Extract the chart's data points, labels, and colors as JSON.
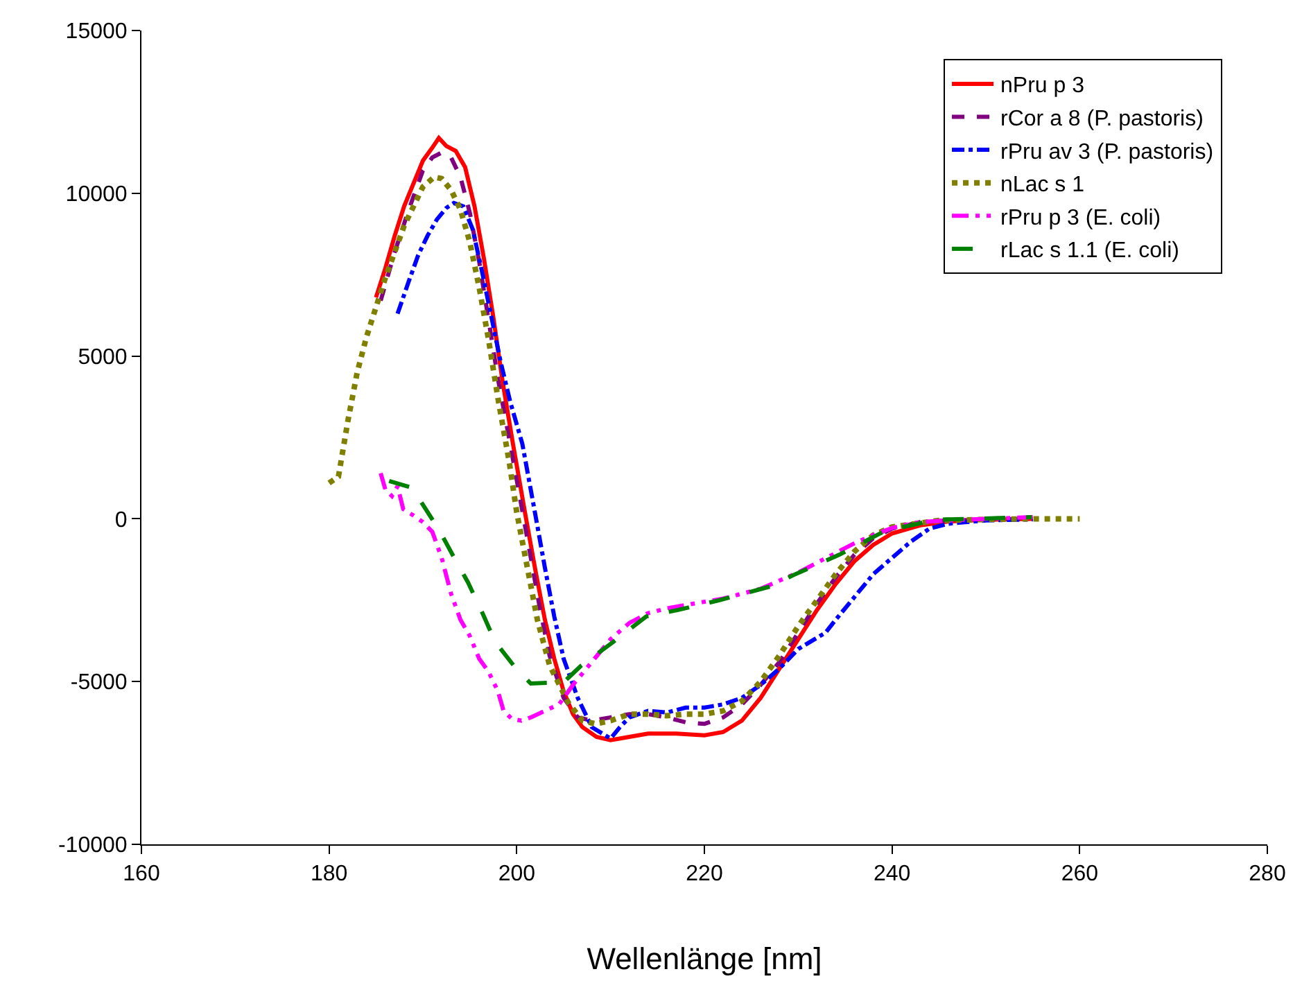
{
  "chart_data": {
    "type": "line",
    "xlabel": "Wellenlänge [nm]",
    "xlim": [
      160,
      280
    ],
    "xticks": [
      160,
      180,
      200,
      220,
      240,
      260,
      280
    ],
    "ylim": [
      -10000,
      15000
    ],
    "yticks": [
      -10000,
      -5000,
      0,
      5000,
      10000,
      15000
    ],
    "legend": "top right",
    "marker": "none",
    "series": [
      {
        "name": "nPru p 3",
        "color": "#ff0000",
        "line_style": "solid",
        "x": [
          185,
          186,
          187,
          188,
          189,
          190,
          191,
          191.7,
          192.5,
          193.5,
          194.5,
          195.5,
          196.5,
          197.5,
          198.5,
          199.6,
          201,
          202,
          203,
          204,
          205,
          206,
          207,
          208.5,
          210,
          212,
          214,
          217,
          220,
          222,
          224,
          226,
          228,
          230,
          232,
          234,
          236,
          238,
          240,
          243,
          246,
          250,
          255
        ],
        "values": [
          6800,
          7700,
          8700,
          9600,
          10300,
          11000,
          11400,
          11700,
          11450,
          11300,
          10800,
          9600,
          8000,
          6200,
          4200,
          2300,
          0,
          -1600,
          -3100,
          -4300,
          -5300,
          -6000,
          -6400,
          -6700,
          -6800,
          -6700,
          -6600,
          -6600,
          -6650,
          -6550,
          -6200,
          -5500,
          -4600,
          -3700,
          -2800,
          -2000,
          -1300,
          -800,
          -450,
          -200,
          -80,
          -30,
          0
        ]
      },
      {
        "name": "rCor a 8 (P. pastoris)",
        "color": "#800080",
        "line_style": "dashed",
        "x": [
          185.5,
          187,
          188.5,
          190,
          191,
          192,
          193,
          194,
          195,
          196,
          197,
          198,
          199.3,
          200.5,
          201.5,
          202.5,
          203.5,
          205,
          206.5,
          208,
          210,
          212,
          214,
          216,
          218,
          220,
          222,
          224,
          226,
          228,
          230,
          232,
          234,
          236,
          238,
          240,
          243,
          246,
          250,
          255
        ],
        "values": [
          6700,
          8200,
          9500,
          10700,
          11100,
          11250,
          11100,
          10500,
          9400,
          7900,
          6100,
          4300,
          2300,
          400,
          -1200,
          -2800,
          -4200,
          -5500,
          -6100,
          -6200,
          -6100,
          -6000,
          -6000,
          -6100,
          -6250,
          -6300,
          -6100,
          -5700,
          -5100,
          -4400,
          -3500,
          -2600,
          -1800,
          -1100,
          -600,
          -300,
          -100,
          -50,
          -30,
          0
        ]
      },
      {
        "name": "rPru av 3 (P. pastoris)",
        "color": "#0000ff",
        "line_style": "dashdot",
        "x": [
          187.3,
          188.5,
          189.5,
          190.5,
          191.5,
          192.5,
          193.3,
          194.3,
          195.3,
          196.3,
          197.3,
          198.3,
          199.3,
          200.6,
          202,
          203,
          204,
          205,
          206.5,
          208,
          210,
          211,
          212,
          214,
          216,
          218,
          220,
          222,
          224,
          226,
          228,
          230,
          232.9,
          234,
          236,
          238,
          239.2,
          240,
          242,
          244,
          246,
          250,
          255
        ],
        "values": [
          6300,
          7300,
          8100,
          8700,
          9200,
          9550,
          9700,
          9600,
          8900,
          7600,
          6200,
          4800,
          3600,
          2300,
          100,
          -1500,
          -3000,
          -4300,
          -5500,
          -6400,
          -6750,
          -6400,
          -6100,
          -5900,
          -5950,
          -5800,
          -5800,
          -5700,
          -5500,
          -5100,
          -4600,
          -4000,
          -3500,
          -3100,
          -2400,
          -1700,
          -1400,
          -1200,
          -700,
          -300,
          -150,
          -50,
          -20
        ]
      },
      {
        "name": "nLac s 1",
        "color": "#808000",
        "line_style": "dotted",
        "x": [
          180,
          181,
          182,
          183,
          184,
          185,
          186,
          187,
          188,
          189,
          190,
          191.2,
          192,
          193,
          194,
          195,
          196,
          197,
          198,
          199.2,
          200,
          201,
          202.2,
          203.5,
          205.5,
          207,
          208.4,
          210,
          212,
          214,
          216,
          218,
          220,
          222,
          224,
          226,
          228,
          230,
          232,
          234,
          236,
          238,
          240,
          245,
          250,
          255,
          260
        ],
        "values": [
          1100,
          1300,
          3000,
          4500,
          5600,
          6500,
          7400,
          8200,
          9000,
          9600,
          10200,
          10500,
          10450,
          10100,
          9500,
          8500,
          7100,
          5500,
          3700,
          1750,
          200,
          -1300,
          -3100,
          -4500,
          -5650,
          -6200,
          -6300,
          -6200,
          -6000,
          -6000,
          -6050,
          -6000,
          -6000,
          -5900,
          -5600,
          -5000,
          -4200,
          -3300,
          -2500,
          -1700,
          -1000,
          -500,
          -250,
          -50,
          -20,
          0,
          0
        ]
      },
      {
        "name": "rPru p 3 (E. coli)",
        "color": "#ff00ff",
        "line_style": "dashdotdot",
        "x": [
          185.5,
          186,
          186.7,
          187.3,
          187.9,
          189,
          190,
          191,
          192,
          193,
          194,
          195,
          196,
          197,
          198,
          198.6,
          199.5,
          200.5,
          201.5,
          203,
          204.5,
          206,
          208,
          210,
          212,
          214,
          216,
          218,
          220,
          222,
          224,
          226,
          228,
          230,
          232,
          234,
          236,
          238,
          240,
          242,
          244,
          246,
          250,
          255
        ],
        "values": [
          1400,
          900,
          700,
          1000,
          300,
          100,
          -100,
          -400,
          -1200,
          -2300,
          -3100,
          -3600,
          -4300,
          -4700,
          -5300,
          -5900,
          -6150,
          -6200,
          -6100,
          -5900,
          -5700,
          -5100,
          -4400,
          -3700,
          -3200,
          -2900,
          -2750,
          -2650,
          -2550,
          -2450,
          -2300,
          -2150,
          -1900,
          -1650,
          -1350,
          -1050,
          -750,
          -500,
          -280,
          -150,
          -80,
          -50,
          0,
          50
        ]
      },
      {
        "name": "rLac s 1.1 (E. coli)",
        "color": "#008000",
        "line_style": "longdash",
        "x": [
          186.4,
          188.9,
          189.8,
          191.8,
          193.3,
          194.8,
          196.4,
          197.7,
          199.9,
          201.5,
          205,
          206.9,
          210.3,
          213.8,
          217.2,
          221.6,
          227,
          229.4,
          234.4,
          239.2,
          244.6,
          254.9
        ],
        "values": [
          1160,
          950,
          520,
          -380,
          -1180,
          -1950,
          -2930,
          -3780,
          -4590,
          -5060,
          -5020,
          -4500,
          -3780,
          -3000,
          -2800,
          -2500,
          -2080,
          -1740,
          -1100,
          -380,
          -30,
          50
        ]
      }
    ]
  }
}
